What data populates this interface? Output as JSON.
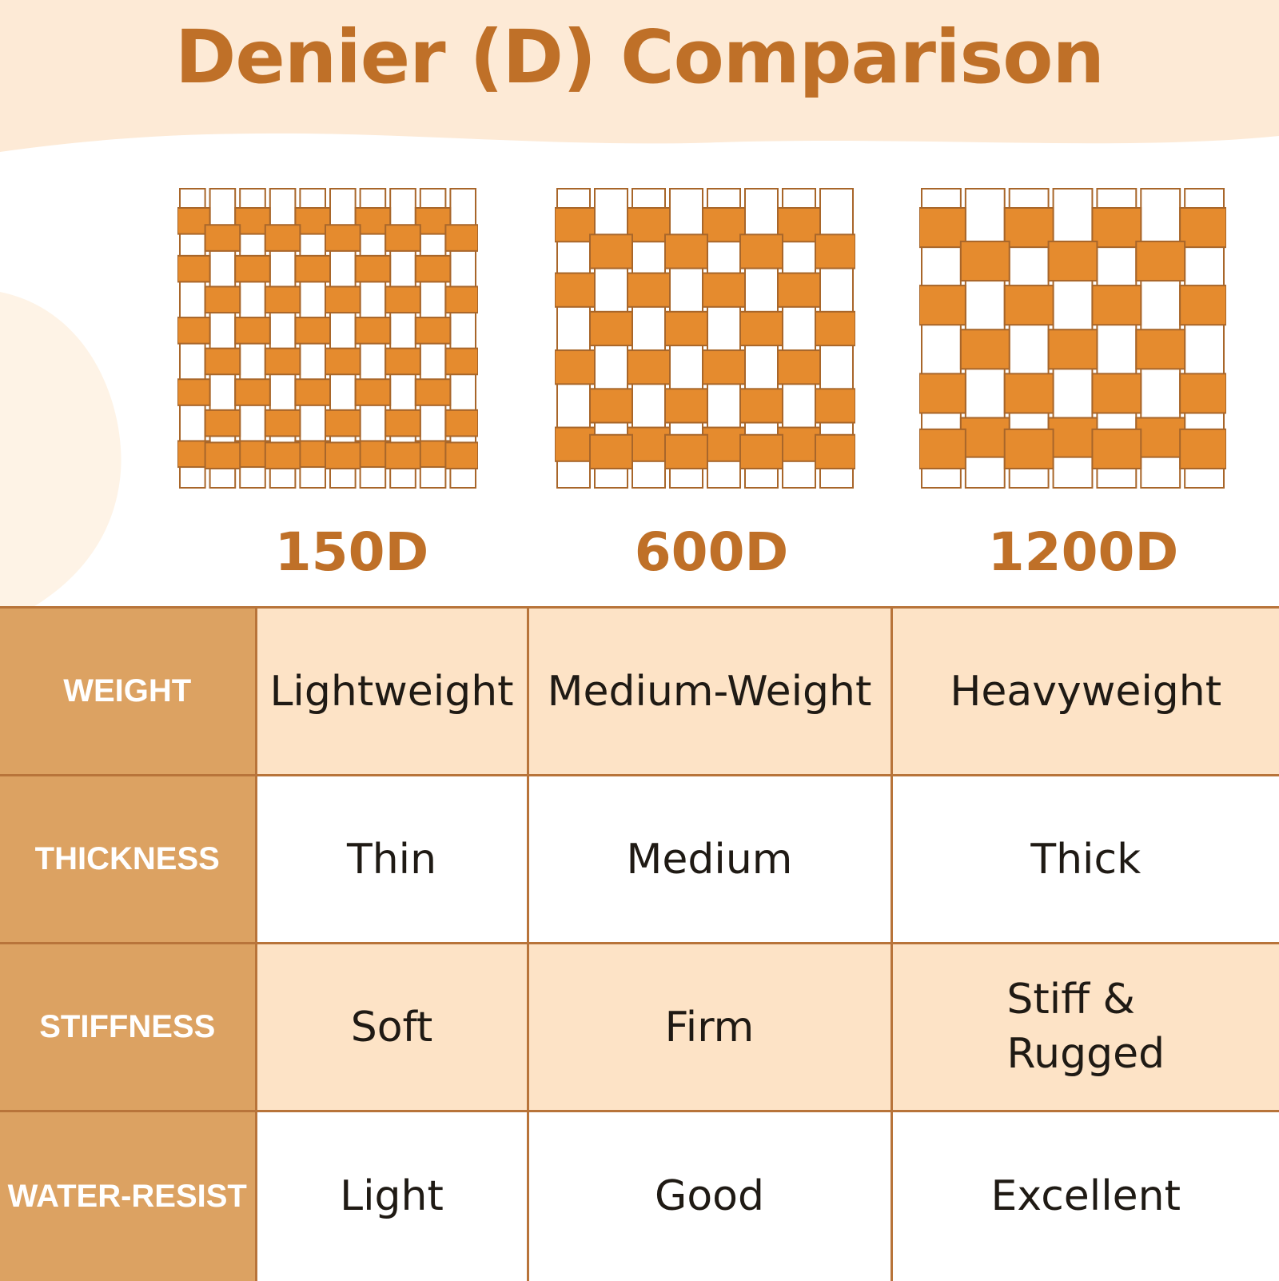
{
  "title": "Denier (D) Comparison",
  "colors": {
    "accent": "#bf7028",
    "weave": "#e58b2e",
    "header_cell": "#dca262",
    "row_tint": "#fde3c6",
    "bg_wave": "#fdead6"
  },
  "fabrics": [
    {
      "label": "150D",
      "strands": 10
    },
    {
      "label": "600D",
      "strands": 8
    },
    {
      "label": "1200D",
      "strands": 7
    }
  ],
  "table": {
    "rows": [
      {
        "header": "WEIGHT",
        "values": [
          "Lightweight",
          "Medium-Weight",
          "Heavyweight"
        ]
      },
      {
        "header": "THICKNESS",
        "values": [
          "Thin",
          "Medium",
          "Thick"
        ]
      },
      {
        "header": "STIFFNESS",
        "values": [
          "Soft",
          "Firm",
          "Stiff &\nRugged"
        ]
      },
      {
        "header": "WATER-RESIST",
        "values": [
          "Light",
          "Good",
          "Excellent"
        ]
      }
    ]
  }
}
